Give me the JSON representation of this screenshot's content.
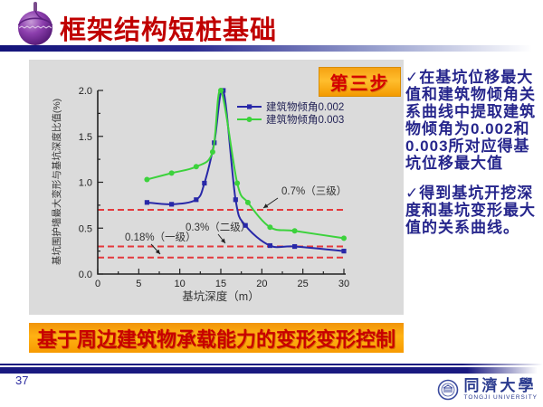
{
  "header": {
    "title": "框架结构短桩基础"
  },
  "badge": {
    "label": "第三步"
  },
  "chart_data": {
    "type": "line",
    "xlabel": "基坑深度（m）",
    "ylabel": "基坑围护墙最大变形与基坑深度比值(%)",
    "xlim": [
      0,
      30
    ],
    "ylim": [
      0,
      2.0
    ],
    "x_major_tick_step": 5,
    "x_minor_tick_step": 2.5,
    "y_major_tick_step": 0.5,
    "y_minor_tick_step": 0.25,
    "grid": false,
    "legend_position": "upper right inside",
    "series": [
      {
        "name": "建筑物倾角0.002",
        "color": "#2828A8",
        "marker": "square",
        "x": [
          6,
          9,
          12,
          13,
          14.2,
          15.3,
          16.8,
          18,
          21,
          24,
          30
        ],
        "y": [
          0.78,
          0.76,
          0.81,
          0.99,
          1.43,
          2.0,
          0.81,
          0.53,
          0.31,
          0.3,
          0.25
        ]
      },
      {
        "name": "建筑物倾角0.003",
        "color": "#3CD23C",
        "marker": "circle",
        "x": [
          6,
          9,
          12,
          14,
          15,
          17,
          18.3,
          21,
          24,
          30
        ],
        "y": [
          1.03,
          1.1,
          1.17,
          1.33,
          2.0,
          0.99,
          0.78,
          0.51,
          0.47,
          0.39
        ]
      }
    ],
    "reference_lines": [
      {
        "value": 0.7,
        "label": "0.7%（三级）",
        "color": "#E4393C",
        "style": "dashed"
      },
      {
        "value": 0.3,
        "label": "0.3%（二级）",
        "color": "#E4393C",
        "style": "dashed"
      },
      {
        "value": 0.18,
        "label": "0.18%（一级）",
        "color": "#E4393C",
        "style": "dashed"
      }
    ]
  },
  "notes": {
    "items": [
      "✓在基坑位移最大值和建筑物倾角关系曲线中提取建筑物倾角为0.002和0.003所对应得基坑位移最大值",
      "✓得到基坑开挖深度和基坑变形最大值的关系曲线。"
    ]
  },
  "banner": {
    "text": "基于周边建筑物承载能力的变形变形控制"
  },
  "footer": {
    "page_number": "37",
    "university_cn": "同濟大學",
    "university_en": "TONGJI UNIVERSITY"
  },
  "colors": {
    "title_red": "#C00000",
    "banner_bg": "#F9A400",
    "banner_text": "#C80000",
    "badge_bg": "#F9A400",
    "badge_text": "#D40000",
    "notes_text": "#26268C",
    "chart_panel_bg": "#DBDBDB",
    "footer_bar": "#191980",
    "reference_line_red": "#E4393C"
  }
}
